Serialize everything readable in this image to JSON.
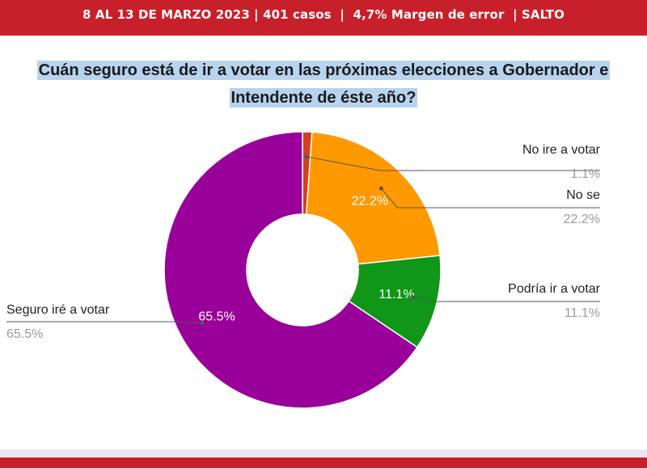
{
  "header": {
    "info": "8 AL 13 DE MARZO 2023 | 401 casos  |  4,7% Margen de error  | SALTO"
  },
  "chart_data": {
    "type": "pie",
    "title_lines": [
      "Cuán seguro está de ir a votar en las próximas elecciones a Gobernador e",
      "Intendente de éste año?"
    ],
    "categories": [
      "No ire a votar",
      "No se",
      "Podría ir a votar",
      "Seguro iré a votar"
    ],
    "values": [
      1.1,
      22.2,
      11.1,
      65.5
    ],
    "value_labels": [
      "1.1%",
      "22.2%",
      "11.1%",
      "65.5%"
    ],
    "colors": [
      "#d2401e",
      "#ff9900",
      "#109618",
      "#990099"
    ],
    "donut": true,
    "inside_labels": [
      "",
      "22.2%",
      "11.1%",
      "65.5%"
    ]
  }
}
